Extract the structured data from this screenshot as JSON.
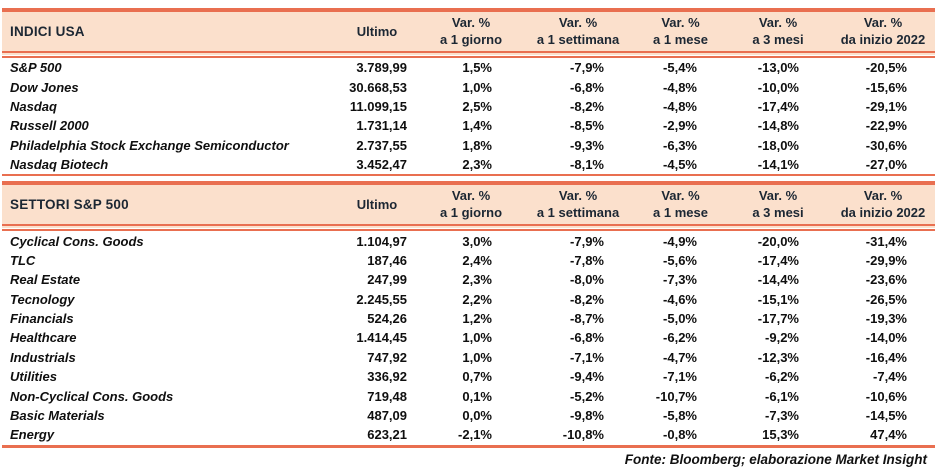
{
  "colors": {
    "accent_border": "#e96f50",
    "header_background": "#fbe0cc",
    "header_text": "#1c2733",
    "body_text": "#0f0f0f"
  },
  "footer": "Fonte: Bloomberg; elaborazione Market Insight",
  "tables": [
    {
      "title": "INDICI USA",
      "ultimo_label": "Ultimo",
      "var_headers": [
        [
          "Var. %",
          "a 1 giorno"
        ],
        [
          "Var. %",
          "a 1 settimana"
        ],
        [
          "Var. %",
          "a 1 mese"
        ],
        [
          "Var. %",
          "a 3 mesi"
        ],
        [
          "Var. %",
          "da inizio 2022"
        ]
      ],
      "rows": [
        {
          "name": "S&P 500",
          "ultimo": "3.789,99",
          "vars": [
            "1,5%",
            "-7,9%",
            "-5,4%",
            "-13,0%",
            "-20,5%"
          ]
        },
        {
          "name": "Dow Jones",
          "ultimo": "30.668,53",
          "vars": [
            "1,0%",
            "-6,8%",
            "-4,8%",
            "-10,0%",
            "-15,6%"
          ]
        },
        {
          "name": "Nasdaq",
          "ultimo": "11.099,15",
          "vars": [
            "2,5%",
            "-8,2%",
            "-4,8%",
            "-17,4%",
            "-29,1%"
          ]
        },
        {
          "name": "Russell 2000",
          "ultimo": "1.731,14",
          "vars": [
            "1,4%",
            "-8,5%",
            "-2,9%",
            "-14,8%",
            "-22,9%"
          ]
        },
        {
          "name": "Philadelphia Stock Exchange Semiconductor",
          "ultimo": "2.737,55",
          "vars": [
            "1,8%",
            "-9,3%",
            "-6,3%",
            "-18,0%",
            "-30,6%"
          ]
        },
        {
          "name": "Nasdaq Biotech",
          "ultimo": "3.452,47",
          "vars": [
            "2,3%",
            "-8,1%",
            "-4,5%",
            "-14,1%",
            "-27,0%"
          ]
        }
      ]
    },
    {
      "title": "SETTORI S&P 500",
      "ultimo_label": "Ultimo",
      "var_headers": [
        [
          "Var. %",
          "a 1 giorno"
        ],
        [
          "Var. %",
          "a 1 settimana"
        ],
        [
          "Var. %",
          "a 1 mese"
        ],
        [
          "Var. %",
          "a 3 mesi"
        ],
        [
          "Var. %",
          "da inizio 2022"
        ]
      ],
      "rows": [
        {
          "name": "Cyclical Cons. Goods",
          "ultimo": "1.104,97",
          "vars": [
            "3,0%",
            "-7,9%",
            "-4,9%",
            "-20,0%",
            "-31,4%"
          ]
        },
        {
          "name": "TLC",
          "ultimo": "187,46",
          "vars": [
            "2,4%",
            "-7,8%",
            "-5,6%",
            "-17,4%",
            "-29,9%"
          ]
        },
        {
          "name": "Real Estate",
          "ultimo": "247,99",
          "vars": [
            "2,3%",
            "-8,0%",
            "-7,3%",
            "-14,4%",
            "-23,6%"
          ]
        },
        {
          "name": "Tecnology",
          "ultimo": "2.245,55",
          "vars": [
            "2,2%",
            "-8,2%",
            "-4,6%",
            "-15,1%",
            "-26,5%"
          ]
        },
        {
          "name": "Financials",
          "ultimo": "524,26",
          "vars": [
            "1,2%",
            "-8,7%",
            "-5,0%",
            "-17,7%",
            "-19,3%"
          ]
        },
        {
          "name": "Healthcare",
          "ultimo": "1.414,45",
          "vars": [
            "1,0%",
            "-6,8%",
            "-6,2%",
            "-9,2%",
            "-14,0%"
          ]
        },
        {
          "name": "Industrials",
          "ultimo": "747,92",
          "vars": [
            "1,0%",
            "-7,1%",
            "-4,7%",
            "-12,3%",
            "-16,4%"
          ]
        },
        {
          "name": "Utilities",
          "ultimo": "336,92",
          "vars": [
            "0,7%",
            "-9,4%",
            "-7,1%",
            "-6,2%",
            "-7,4%"
          ]
        },
        {
          "name": "Non-Cyclical Cons. Goods",
          "ultimo": "719,48",
          "vars": [
            "0,1%",
            "-5,2%",
            "-10,7%",
            "-6,1%",
            "-10,6%"
          ]
        },
        {
          "name": "Basic Materials",
          "ultimo": "487,09",
          "vars": [
            "0,0%",
            "-9,8%",
            "-5,8%",
            "-7,3%",
            "-14,5%"
          ]
        },
        {
          "name": "Energy",
          "ultimo": "623,21",
          "vars": [
            "-2,1%",
            "-10,8%",
            "-0,8%",
            "15,3%",
            "47,4%"
          ]
        }
      ]
    }
  ]
}
